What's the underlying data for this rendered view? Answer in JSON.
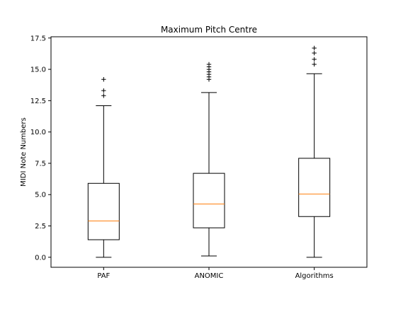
{
  "chart_data": {
    "type": "box",
    "title": "Maximum Pitch Centre",
    "xlabel": "",
    "ylabel": "MIDI Note Numbers",
    "ylim": [
      -0.8,
      17.6
    ],
    "yticks": [
      0.0,
      2.5,
      5.0,
      7.5,
      10.0,
      12.5,
      15.0,
      17.5
    ],
    "ytick_labels": [
      "0.0",
      "2.5",
      "5.0",
      "7.5",
      "10.0",
      "12.5",
      "15.0",
      "17.5"
    ],
    "categories": [
      "PAF",
      "ANOMIC",
      "Algorithms"
    ],
    "grid": false,
    "median_color": "#ff7f0e",
    "box_color": "#000000",
    "boxes": [
      {
        "label": "PAF",
        "whisker_low": 0.0,
        "q1": 1.4,
        "median": 2.9,
        "q3": 5.9,
        "whisker_high": 12.1,
        "outliers": [
          12.9,
          13.3,
          14.2
        ]
      },
      {
        "label": "ANOMIC",
        "whisker_low": 0.1,
        "q1": 2.35,
        "median": 4.25,
        "q3": 6.7,
        "whisker_high": 13.15,
        "outliers": [
          14.2,
          14.4,
          14.6,
          14.8,
          15.0,
          15.2,
          15.4
        ]
      },
      {
        "label": "Algorithms",
        "whisker_low": 0.0,
        "q1": 3.25,
        "median": 5.05,
        "q3": 7.9,
        "whisker_high": 14.65,
        "outliers": [
          15.4,
          15.8,
          16.3,
          16.7
        ]
      }
    ]
  }
}
